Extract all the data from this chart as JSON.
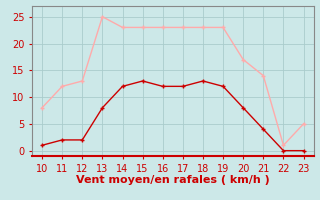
{
  "x": [
    10,
    11,
    12,
    13,
    14,
    15,
    16,
    17,
    18,
    19,
    20,
    21,
    22,
    23
  ],
  "y_mean": [
    1,
    2,
    2,
    8,
    12,
    13,
    12,
    12,
    13,
    12,
    8,
    4,
    0,
    0
  ],
  "y_gust": [
    8,
    12,
    13,
    25,
    23,
    23,
    23,
    23,
    23,
    23,
    17,
    14,
    1,
    5
  ],
  "color_mean": "#cc0000",
  "color_gust": "#ffaaaa",
  "bg_color": "#cce8e8",
  "grid_color": "#aacccc",
  "spine_color": "#888888",
  "bottom_spine_color": "#cc0000",
  "xlabel": "Vent moyen/en rafales ( km/h )",
  "xlabel_color": "#cc0000",
  "tick_color": "#cc0000",
  "ylim": [
    -1,
    27
  ],
  "yticks": [
    0,
    5,
    10,
    15,
    20,
    25
  ],
  "xlim": [
    9.5,
    23.5
  ],
  "xticks": [
    10,
    11,
    12,
    13,
    14,
    15,
    16,
    17,
    18,
    19,
    20,
    21,
    22,
    23
  ],
  "linewidth": 1.0,
  "markersize": 3,
  "xlabel_fontsize": 8,
  "tick_fontsize": 7
}
